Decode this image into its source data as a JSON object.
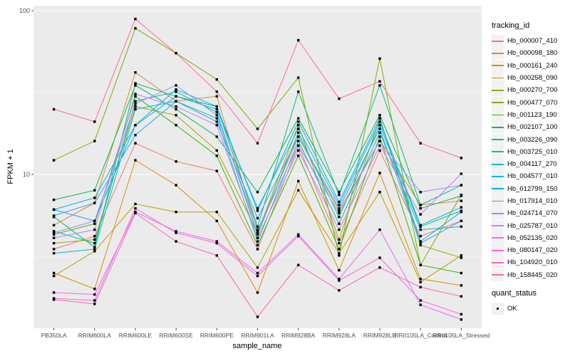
{
  "chart_data": {
    "type": "line",
    "title": "",
    "xlabel": "sample_name",
    "ylabel": "FPKM + 1",
    "y_scale": "log10",
    "ylim": [
      1.15,
      107
    ],
    "y_major_ticks": [
      "10",
      "100"
    ],
    "y_major_values": [
      10,
      100
    ],
    "y_minor_values": [
      3.162,
      31.62
    ],
    "grid": true,
    "legend_position": "right",
    "panel_bg": "#EBEBEB",
    "grid_color": "#FFFFFF",
    "axis_text_color": "#4D4D4D",
    "tick_color": "#333333",
    "point_marker": "black-square",
    "point_color": "#000000",
    "categories": [
      "PB350LA",
      "RRIM600LA",
      "RRIM600LE",
      "RRIM600SE",
      "RRIM600PE",
      "RRIM901LA",
      "RRIM928BA",
      "RRIM928LA",
      "RRIM928LB",
      "RRII105LA_Control",
      "RRII105LA_Stressed"
    ],
    "legend_title": "tracking_id",
    "series": [
      {
        "name": "Hb_000007_410",
        "color": "#F8766D",
        "values": [
          3.5,
          4.2,
          15.5,
          12,
          10.5,
          3.5,
          15,
          3.8,
          14,
          4.2,
          5.2
        ]
      },
      {
        "name": "Hb_000098_180",
        "color": "#EA8331",
        "values": [
          4.9,
          6.7,
          42,
          28,
          30,
          4.5,
          17,
          6,
          16,
          6.5,
          6.9
        ]
      },
      {
        "name": "Hb_000161_240",
        "color": "#D89000",
        "values": [
          2.5,
          2.0,
          12.2,
          8.6,
          5.2,
          1.9,
          9.1,
          2.6,
          10.2,
          2.3,
          2.1
        ]
      },
      {
        "name": "Hb_000258_090",
        "color": "#C09B00",
        "values": [
          2.4,
          3.4,
          6.6,
          5.9,
          5.9,
          2.7,
          8.0,
          3.3,
          7.8,
          2.2,
          3.2
        ]
      },
      {
        "name": "Hb_000270_700",
        "color": "#A3A500",
        "values": [
          3.8,
          4.0,
          26,
          23,
          14,
          4.4,
          20,
          4.0,
          22,
          3.7,
          3.1
        ]
      },
      {
        "name": "Hb_000477_070",
        "color": "#7CAE00",
        "values": [
          12.2,
          16,
          78,
          55,
          38,
          19,
          39,
          3.2,
          51,
          2.8,
          7.5
        ]
      },
      {
        "name": "Hb_001123_190",
        "color": "#39B600",
        "values": [
          4.3,
          5.0,
          30,
          20,
          13,
          3.7,
          13,
          3.5,
          17,
          2.8,
          2.5
        ]
      },
      {
        "name": "Hb_002107_100",
        "color": "#00BB4E",
        "values": [
          7.0,
          8.0,
          35,
          25,
          17,
          7.8,
          22,
          7.8,
          23,
          6.2,
          7.4
        ]
      },
      {
        "name": "Hb_003226_090",
        "color": "#00BF7D",
        "values": [
          5.5,
          3.6,
          36,
          30,
          26,
          4.8,
          32,
          7.5,
          35,
          6.5,
          8.6
        ]
      },
      {
        "name": "Hb_003725_010",
        "color": "#00C1A3",
        "values": [
          4.5,
          3.8,
          28,
          32,
          24,
          4.3,
          18,
          5.5,
          20,
          4.8,
          6.0
        ]
      },
      {
        "name": "Hb_004117_270",
        "color": "#00BFC4",
        "values": [
          3.3,
          3.5,
          25,
          28,
          22,
          3.9,
          16,
          5.0,
          18,
          4.6,
          4.8
        ]
      },
      {
        "name": "Hb_004577_010",
        "color": "#00BAE0",
        "values": [
          6.1,
          7.2,
          20,
          30,
          25,
          6.2,
          19,
          6.5,
          21,
          4.9,
          6.3
        ]
      },
      {
        "name": "Hb_012799_150",
        "color": "#00B0F6",
        "values": [
          6.1,
          5.2,
          20,
          33,
          26,
          6.0,
          21,
          6.8,
          22,
          3.9,
          5.9
        ]
      },
      {
        "name": "Hb_017914_010",
        "color": "#35A2FF",
        "values": [
          5.6,
          6.7,
          17.4,
          28,
          21,
          5.4,
          17,
          6.2,
          19,
          3.8,
          5.2
        ]
      },
      {
        "name": "Hb_024714_070",
        "color": "#9590FF",
        "values": [
          4.4,
          5.2,
          27,
          35,
          23,
          4.6,
          15,
          5.8,
          16,
          7.8,
          8.6
        ]
      },
      {
        "name": "Hb_025787_010",
        "color": "#C77CFF",
        "values": [
          4.1,
          4.6,
          31,
          26,
          20,
          4.1,
          14,
          4.6,
          15,
          5.7,
          10.1
        ]
      },
      {
        "name": "Hb_052135_020",
        "color": "#E76BF3",
        "values": [
          1.9,
          1.85,
          5.9,
          4.5,
          3.9,
          2.5,
          4.3,
          2.3,
          4.6,
          1.6,
          1.3
        ]
      },
      {
        "name": "Hb_080147_020",
        "color": "#FA62DB",
        "values": [
          1.75,
          1.7,
          6.2,
          4.4,
          3.8,
          2.4,
          4.2,
          2.25,
          3.1,
          1.7,
          1.4
        ]
      },
      {
        "name": "Hb_104920_010",
        "color": "#FF62BC",
        "values": [
          1.72,
          1.62,
          5.8,
          3.9,
          3.2,
          1.35,
          2.8,
          1.96,
          2.7,
          2.05,
          1.8
        ]
      },
      {
        "name": "Hb_158445_020",
        "color": "#FF6A98",
        "values": [
          25,
          21,
          89,
          55,
          32,
          15.5,
          66,
          29,
          37,
          15.5,
          12.6
        ]
      }
    ],
    "legend2": {
      "title": "quant_status",
      "items": [
        {
          "label": "OK",
          "marker": "black-square"
        }
      ]
    }
  }
}
